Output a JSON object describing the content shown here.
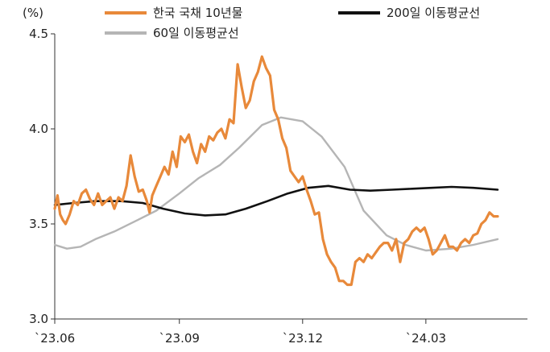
{
  "chart_data": {
    "type": "line",
    "ylabel": "(%)",
    "ylim": [
      3.0,
      4.5
    ],
    "y_ticks": [
      "3.0",
      "3.5",
      "4.0",
      "4.5"
    ],
    "x_ticks": [
      {
        "date": "2023-06-01",
        "label": "`23.06"
      },
      {
        "date": "2023-09-01",
        "label": "`23.09"
      },
      {
        "date": "2023-12-01",
        "label": "`23.12"
      },
      {
        "date": "2024-03-01",
        "label": "`24.03"
      }
    ],
    "xlim": [
      "2023-06-01",
      "2024-05-15"
    ],
    "grid": false,
    "legend": "top",
    "series": [
      {
        "name": "한국 국채 10년물",
        "color": "#E8893A",
        "points": [
          [
            "2023-06-01",
            3.58
          ],
          [
            "2023-06-03",
            3.65
          ],
          [
            "2023-06-05",
            3.55
          ],
          [
            "2023-06-07",
            3.52
          ],
          [
            "2023-06-09",
            3.5
          ],
          [
            "2023-06-12",
            3.55
          ],
          [
            "2023-06-15",
            3.62
          ],
          [
            "2023-06-18",
            3.6
          ],
          [
            "2023-06-21",
            3.66
          ],
          [
            "2023-06-24",
            3.68
          ],
          [
            "2023-06-27",
            3.63
          ],
          [
            "2023-06-30",
            3.6
          ],
          [
            "2023-07-03",
            3.66
          ],
          [
            "2023-07-06",
            3.6
          ],
          [
            "2023-07-09",
            3.62
          ],
          [
            "2023-07-12",
            3.64
          ],
          [
            "2023-07-15",
            3.58
          ],
          [
            "2023-07-18",
            3.64
          ],
          [
            "2023-07-21",
            3.62
          ],
          [
            "2023-07-24",
            3.7
          ],
          [
            "2023-07-27",
            3.86
          ],
          [
            "2023-07-30",
            3.75
          ],
          [
            "2023-08-02",
            3.67
          ],
          [
            "2023-08-05",
            3.68
          ],
          [
            "2023-08-08",
            3.62
          ],
          [
            "2023-08-10",
            3.56
          ],
          [
            "2023-08-12",
            3.65
          ],
          [
            "2023-08-15",
            3.7
          ],
          [
            "2023-08-18",
            3.75
          ],
          [
            "2023-08-21",
            3.8
          ],
          [
            "2023-08-24",
            3.76
          ],
          [
            "2023-08-27",
            3.88
          ],
          [
            "2023-08-30",
            3.8
          ],
          [
            "2023-09-02",
            3.96
          ],
          [
            "2023-09-05",
            3.93
          ],
          [
            "2023-09-08",
            3.97
          ],
          [
            "2023-09-11",
            3.88
          ],
          [
            "2023-09-14",
            3.82
          ],
          [
            "2023-09-17",
            3.92
          ],
          [
            "2023-09-20",
            3.88
          ],
          [
            "2023-09-23",
            3.96
          ],
          [
            "2023-09-26",
            3.94
          ],
          [
            "2023-09-29",
            3.98
          ],
          [
            "2023-10-02",
            4.0
          ],
          [
            "2023-10-05",
            3.95
          ],
          [
            "2023-10-08",
            4.05
          ],
          [
            "2023-10-11",
            4.03
          ],
          [
            "2023-10-14",
            4.34
          ],
          [
            "2023-10-17",
            4.22
          ],
          [
            "2023-10-20",
            4.11
          ],
          [
            "2023-10-23",
            4.15
          ],
          [
            "2023-10-26",
            4.25
          ],
          [
            "2023-10-29",
            4.3
          ],
          [
            "2023-11-01",
            4.38
          ],
          [
            "2023-11-04",
            4.32
          ],
          [
            "2023-11-07",
            4.28
          ],
          [
            "2023-11-10",
            4.1
          ],
          [
            "2023-11-13",
            4.05
          ],
          [
            "2023-11-16",
            3.95
          ],
          [
            "2023-11-19",
            3.9
          ],
          [
            "2023-11-22",
            3.78
          ],
          [
            "2023-11-25",
            3.75
          ],
          [
            "2023-11-28",
            3.72
          ],
          [
            "2023-12-01",
            3.75
          ],
          [
            "2023-12-04",
            3.68
          ],
          [
            "2023-12-07",
            3.62
          ],
          [
            "2023-12-10",
            3.55
          ],
          [
            "2023-12-13",
            3.56
          ],
          [
            "2023-12-16",
            3.42
          ],
          [
            "2023-12-19",
            3.34
          ],
          [
            "2023-12-22",
            3.3
          ],
          [
            "2023-12-25",
            3.27
          ],
          [
            "2023-12-28",
            3.2
          ],
          [
            "2023-12-31",
            3.2
          ],
          [
            "2024-01-03",
            3.18
          ],
          [
            "2024-01-06",
            3.18
          ],
          [
            "2024-01-09",
            3.3
          ],
          [
            "2024-01-12",
            3.32
          ],
          [
            "2024-01-15",
            3.3
          ],
          [
            "2024-01-18",
            3.34
          ],
          [
            "2024-01-21",
            3.32
          ],
          [
            "2024-01-24",
            3.35
          ],
          [
            "2024-01-27",
            3.38
          ],
          [
            "2024-01-30",
            3.4
          ],
          [
            "2024-02-02",
            3.4
          ],
          [
            "2024-02-05",
            3.36
          ],
          [
            "2024-02-08",
            3.42
          ],
          [
            "2024-02-11",
            3.3
          ],
          [
            "2024-02-14",
            3.4
          ],
          [
            "2024-02-17",
            3.42
          ],
          [
            "2024-02-20",
            3.46
          ],
          [
            "2024-02-23",
            3.48
          ],
          [
            "2024-02-26",
            3.46
          ],
          [
            "2024-02-29",
            3.48
          ],
          [
            "2024-03-03",
            3.42
          ],
          [
            "2024-03-06",
            3.34
          ],
          [
            "2024-03-09",
            3.36
          ],
          [
            "2024-03-12",
            3.4
          ],
          [
            "2024-03-15",
            3.44
          ],
          [
            "2024-03-18",
            3.38
          ],
          [
            "2024-03-21",
            3.38
          ],
          [
            "2024-03-24",
            3.36
          ],
          [
            "2024-03-27",
            3.4
          ],
          [
            "2024-03-30",
            3.42
          ],
          [
            "2024-04-02",
            3.4
          ],
          [
            "2024-04-05",
            3.44
          ],
          [
            "2024-04-08",
            3.45
          ],
          [
            "2024-04-11",
            3.5
          ],
          [
            "2024-04-14",
            3.52
          ],
          [
            "2024-04-17",
            3.56
          ],
          [
            "2024-04-20",
            3.54
          ],
          [
            "2024-04-23",
            3.54
          ]
        ]
      },
      {
        "name": "200일 이동평균선",
        "color": "#111111",
        "points": [
          [
            "2023-06-01",
            3.6
          ],
          [
            "2023-06-15",
            3.61
          ],
          [
            "2023-07-01",
            3.62
          ],
          [
            "2023-07-20",
            3.62
          ],
          [
            "2023-08-05",
            3.61
          ],
          [
            "2023-08-20",
            3.58
          ],
          [
            "2023-09-05",
            3.555
          ],
          [
            "2023-09-20",
            3.545
          ],
          [
            "2023-10-05",
            3.55
          ],
          [
            "2023-10-20",
            3.58
          ],
          [
            "2023-11-05",
            3.62
          ],
          [
            "2023-11-20",
            3.66
          ],
          [
            "2023-12-05",
            3.69
          ],
          [
            "2023-12-20",
            3.7
          ],
          [
            "2024-01-05",
            3.68
          ],
          [
            "2024-01-20",
            3.675
          ],
          [
            "2024-02-05",
            3.68
          ],
          [
            "2024-02-20",
            3.685
          ],
          [
            "2024-03-05",
            3.69
          ],
          [
            "2024-03-20",
            3.695
          ],
          [
            "2024-04-05",
            3.69
          ],
          [
            "2024-04-23",
            3.68
          ]
        ]
      },
      {
        "name": "60일 이동평균선",
        "color": "#B5B5B5",
        "points": [
          [
            "2023-06-01",
            3.39
          ],
          [
            "2023-06-10",
            3.37
          ],
          [
            "2023-06-20",
            3.38
          ],
          [
            "2023-07-01",
            3.42
          ],
          [
            "2023-07-15",
            3.46
          ],
          [
            "2023-08-01",
            3.52
          ],
          [
            "2023-08-15",
            3.57
          ],
          [
            "2023-09-01",
            3.66
          ],
          [
            "2023-09-15",
            3.74
          ],
          [
            "2023-10-01",
            3.81
          ],
          [
            "2023-10-15",
            3.9
          ],
          [
            "2023-11-01",
            4.02
          ],
          [
            "2023-11-15",
            4.06
          ],
          [
            "2023-12-01",
            4.04
          ],
          [
            "2023-12-15",
            3.96
          ],
          [
            "2024-01-01",
            3.8
          ],
          [
            "2024-01-15",
            3.57
          ],
          [
            "2024-02-01",
            3.44
          ],
          [
            "2024-02-15",
            3.39
          ],
          [
            "2024-03-01",
            3.36
          ],
          [
            "2024-03-20",
            3.37
          ],
          [
            "2024-04-05",
            3.39
          ],
          [
            "2024-04-23",
            3.42
          ]
        ]
      }
    ]
  }
}
